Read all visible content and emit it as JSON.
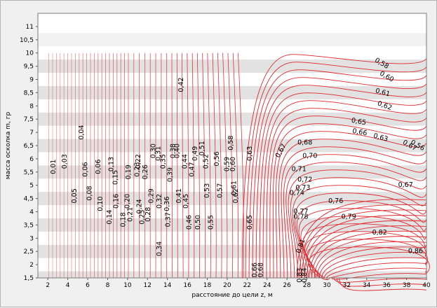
{
  "chart_data": {
    "type": "contour",
    "xlabel": "расстояние до цели z, м",
    "ylabel": "масса осколка m, гр",
    "xlim": [
      1,
      40
    ],
    "ylim": [
      1.5,
      11.5
    ],
    "x_ticks": [
      "2",
      "4",
      "6",
      "8",
      "10",
      "12",
      "14",
      "16",
      "18",
      "20",
      "22",
      "24",
      "26",
      "28",
      "30",
      "32",
      "34",
      "36",
      "38",
      "40"
    ],
    "y_ticks": [
      "1,5",
      "2",
      "2,5",
      "3",
      "3,5",
      "4",
      "4,5",
      "5",
      "5,5",
      "6",
      "6,5",
      "7",
      "7,5",
      "8",
      "8,5",
      "9",
      "9,5",
      "10",
      "10,5",
      "11"
    ],
    "data_ylim_top": 10,
    "line_color": "#e0282e",
    "band_color": "#e2e2e2",
    "background": "#ffffff",
    "labels": [
      {
        "text": "0,01",
        "x": 2.6,
        "y": 5.7,
        "rot": -90
      },
      {
        "text": "0,03",
        "x": 3.7,
        "y": 5.9,
        "rot": -90
      },
      {
        "text": "0,04",
        "x": 5.4,
        "y": 7.0,
        "rot": -90
      },
      {
        "text": "0,05",
        "x": 4.7,
        "y": 4.6,
        "rot": -90
      },
      {
        "text": "0,06",
        "x": 5.8,
        "y": 5.6,
        "rot": -90
      },
      {
        "text": "0,06",
        "x": 7.1,
        "y": 5.7,
        "rot": -90
      },
      {
        "text": "0,08",
        "x": 6.2,
        "y": 4.7,
        "rot": -90
      },
      {
        "text": "0,10",
        "x": 7.3,
        "y": 4.3,
        "rot": -90
      },
      {
        "text": "0,13",
        "x": 8.4,
        "y": 5.8,
        "rot": -90
      },
      {
        "text": "0,14",
        "x": 8.2,
        "y": 3.8,
        "rot": -90
      },
      {
        "text": "0,15",
        "x": 8.8,
        "y": 5.3,
        "rot": -90
      },
      {
        "text": "0,16",
        "x": 8.9,
        "y": 4.4,
        "rot": -90
      },
      {
        "text": "0,18",
        "x": 9.6,
        "y": 3.7,
        "rot": -90
      },
      {
        "text": "0,19",
        "x": 10.1,
        "y": 5.5,
        "rot": -90
      },
      {
        "text": "0,20",
        "x": 10.0,
        "y": 4.4,
        "rot": -90
      },
      {
        "text": "0,21",
        "x": 10.3,
        "y": 3.9,
        "rot": -90
      },
      {
        "text": "0,22",
        "x": 11.1,
        "y": 5.9,
        "rot": -90
      },
      {
        "text": "0,23",
        "x": 11.0,
        "y": 5.6,
        "rot": -90
      },
      {
        "text": "0,24",
        "x": 11.2,
        "y": 4.2,
        "rot": -90
      },
      {
        "text": "0,25",
        "x": 11.5,
        "y": 3.8,
        "rot": -90
      },
      {
        "text": "0,26",
        "x": 11.8,
        "y": 5.5,
        "rot": -90
      },
      {
        "text": "0,28",
        "x": 12.1,
        "y": 3.9,
        "rot": -90
      },
      {
        "text": "0,29",
        "x": 12.4,
        "y": 4.6,
        "rot": -90
      },
      {
        "text": "0,30",
        "x": 12.6,
        "y": 6.3,
        "rot": -90
      },
      {
        "text": "0,31",
        "x": 13.1,
        "y": 6.2,
        "rot": -90
      },
      {
        "text": "0,32",
        "x": 13.2,
        "y": 4.4,
        "rot": -90
      },
      {
        "text": "0,34",
        "x": 13.2,
        "y": 2.6,
        "rot": -90
      },
      {
        "text": "0,35",
        "x": 13.6,
        "y": 5.9,
        "rot": -90
      },
      {
        "text": "0,36",
        "x": 14.0,
        "y": 4.3,
        "rot": -90
      },
      {
        "text": "0,37",
        "x": 14.1,
        "y": 3.7,
        "rot": -90
      },
      {
        "text": "0,38",
        "x": 14.6,
        "y": 6.3,
        "rot": -90
      },
      {
        "text": "0,39",
        "x": 14.3,
        "y": 5.4,
        "rot": -90
      },
      {
        "text": "0,40",
        "x": 15.0,
        "y": 6.3,
        "rot": -90
      },
      {
        "text": "0,41",
        "x": 15.2,
        "y": 4.6,
        "rot": -90
      },
      {
        "text": "0,42",
        "x": 15.4,
        "y": 8.8,
        "rot": -90
      },
      {
        "text": "0,44",
        "x": 15.8,
        "y": 5.9,
        "rot": -90
      },
      {
        "text": "0,45",
        "x": 15.9,
        "y": 4.4,
        "rot": -90
      },
      {
        "text": "0,46",
        "x": 16.2,
        "y": 3.6,
        "rot": -90
      },
      {
        "text": "0,47",
        "x": 16.5,
        "y": 5.6,
        "rot": -90
      },
      {
        "text": "0,49",
        "x": 16.8,
        "y": 6.2,
        "rot": -90
      },
      {
        "text": "0,50",
        "x": 17.1,
        "y": 3.6,
        "rot": -90
      },
      {
        "text": "0,51",
        "x": 17.5,
        "y": 6.4,
        "rot": -90
      },
      {
        "text": "0,52",
        "x": 17.9,
        "y": 5.9,
        "rot": -90
      },
      {
        "text": "0,53",
        "x": 18.0,
        "y": 4.8,
        "rot": -90
      },
      {
        "text": "0,55",
        "x": 18.4,
        "y": 3.6,
        "rot": -90
      },
      {
        "text": "0,56",
        "x": 19.0,
        "y": 6.0,
        "rot": -90
      },
      {
        "text": "0,57",
        "x": 19.3,
        "y": 4.8,
        "rot": -90
      },
      {
        "text": "0,58",
        "x": 20.4,
        "y": 6.6,
        "rot": -90
      },
      {
        "text": "0,58",
        "x": 35.5,
        "y": 9.6,
        "rot": 30
      },
      {
        "text": "0,59",
        "x": 20.0,
        "y": 5.8,
        "rot": -90
      },
      {
        "text": "0,60",
        "x": 20.6,
        "y": 5.8,
        "rot": -90
      },
      {
        "text": "0,60",
        "x": 36.0,
        "y": 9.1,
        "rot": 30
      },
      {
        "text": "0,61",
        "x": 20.7,
        "y": 4.9,
        "rot": -90
      },
      {
        "text": "0,61",
        "x": 35.6,
        "y": 8.5,
        "rot": 15
      },
      {
        "text": "0,62",
        "x": 20.9,
        "y": 4.6,
        "rot": -90
      },
      {
        "text": "0,62",
        "x": 35.8,
        "y": 8.0,
        "rot": 20
      },
      {
        "text": "0,63",
        "x": 22.3,
        "y": 6.2,
        "rot": -90
      },
      {
        "text": "0,63",
        "x": 35.4,
        "y": 6.8,
        "rot": 15
      },
      {
        "text": "0,65",
        "x": 22.3,
        "y": 3.6,
        "rot": -90
      },
      {
        "text": "0,65",
        "x": 33.2,
        "y": 7.4,
        "rot": 10
      },
      {
        "text": "0,66",
        "x": 22.8,
        "y": 1.8,
        "rot": -90
      },
      {
        "text": "0,66",
        "x": 33.3,
        "y": 7.0,
        "rot": 10
      },
      {
        "text": "0,67",
        "x": 25.4,
        "y": 6.3,
        "rot": -60
      },
      {
        "text": "0,67",
        "x": 37.9,
        "y": 5.0,
        "rot": 0
      },
      {
        "text": "0,67",
        "x": 38.3,
        "y": 6.5,
        "rot": 30
      },
      {
        "text": "0,68",
        "x": 23.4,
        "y": 1.8,
        "rot": -90
      },
      {
        "text": "0,68",
        "x": 27.8,
        "y": 6.6,
        "rot": 0
      },
      {
        "text": "0,70",
        "x": 28.3,
        "y": 6.1,
        "rot": 0
      },
      {
        "text": "0,71",
        "x": 27.2,
        "y": 5.6,
        "rot": 0
      },
      {
        "text": "0,72",
        "x": 27.8,
        "y": 5.2,
        "rot": 0
      },
      {
        "text": "0,73",
        "x": 27.6,
        "y": 4.9,
        "rot": 0
      },
      {
        "text": "0,74",
        "x": 27.0,
        "y": 4.7,
        "rot": 0
      },
      {
        "text": "0,76",
        "x": 30.9,
        "y": 4.4,
        "rot": 0
      },
      {
        "text": "0,77",
        "x": 27.4,
        "y": 4.0,
        "rot": 0
      },
      {
        "text": "0,78",
        "x": 27.4,
        "y": 3.8,
        "rot": 0
      },
      {
        "text": "0,79",
        "x": 32.2,
        "y": 3.8,
        "rot": 0
      },
      {
        "text": "0,81",
        "x": 27.4,
        "y": 2.7,
        "rot": -70
      },
      {
        "text": "0,82",
        "x": 35.3,
        "y": 3.2,
        "rot": 0
      },
      {
        "text": "0,83",
        "x": 27.3,
        "y": 1.6,
        "rot": -90
      },
      {
        "text": "0,84",
        "x": 27.8,
        "y": 1.6,
        "rot": -90
      },
      {
        "text": "0,86",
        "x": 38.9,
        "y": 2.5,
        "rot": 0
      },
      {
        "text": "0,56",
        "x": 39.1,
        "y": 6.5,
        "rot": 30
      }
    ]
  }
}
